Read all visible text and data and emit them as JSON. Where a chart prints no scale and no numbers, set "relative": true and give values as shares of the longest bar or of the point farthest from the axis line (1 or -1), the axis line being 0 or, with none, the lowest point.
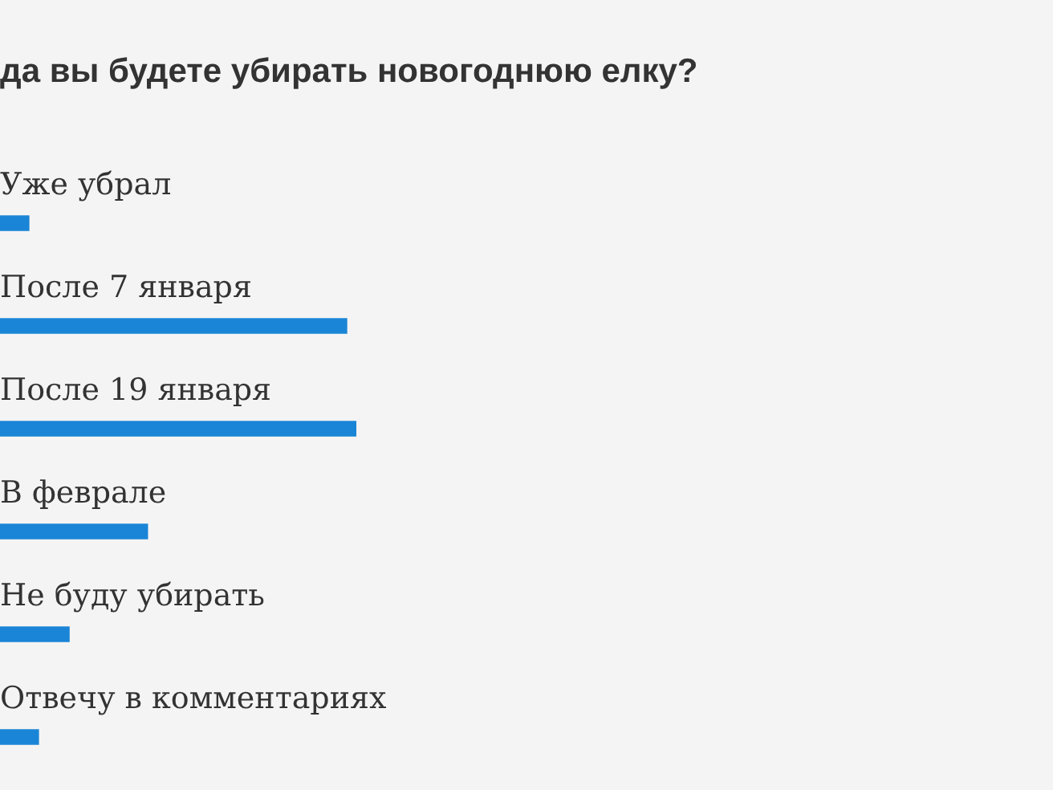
{
  "chart_data": {
    "type": "bar",
    "orientation": "horizontal",
    "relative": true,
    "title": "да вы будете убирать новогоднюю елку?",
    "categories": [
      "Уже убрал",
      "После 7 января",
      "После 19 января",
      "В феврале",
      "Не буду убирать",
      "Отвечу в комментариях"
    ],
    "values": [
      0.081,
      0.973,
      1,
      0.414,
      0.194,
      0.108
    ],
    "color": "#1a85d6"
  }
}
